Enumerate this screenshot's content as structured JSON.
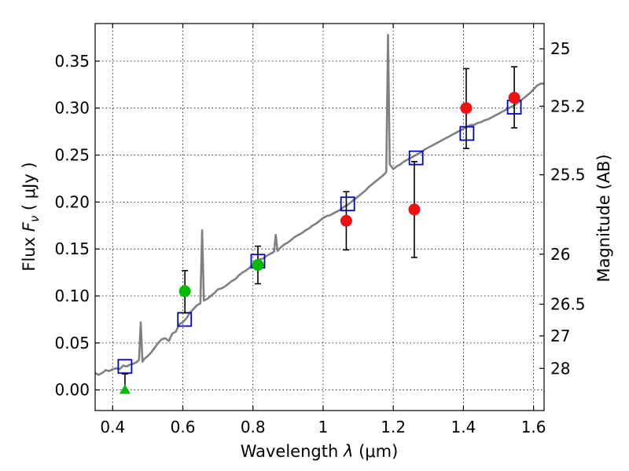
{
  "chart_data": {
    "type": "scatter",
    "xlabel": "Wavelength",
    "xlabel_symbol": "λ",
    "xlabel_unit": "(μm)",
    "ylabel": "Flux",
    "ylabel_symbol": "F",
    "ylabel_subscript": "ν",
    "ylabel_unit": "( μJy )",
    "y2label": "Magnitude (AB)",
    "xlim": [
      0.35,
      1.63
    ],
    "ylim": [
      -0.022,
      0.39
    ],
    "xticks": [
      {
        "value": 0.4,
        "label": "0.4"
      },
      {
        "value": 0.6,
        "label": "0.6"
      },
      {
        "value": 0.8,
        "label": "0.8"
      },
      {
        "value": 1.0,
        "label": "1"
      },
      {
        "value": 1.2,
        "label": "1.2"
      },
      {
        "value": 1.4,
        "label": "1.4"
      },
      {
        "value": 1.6,
        "label": "1.6"
      }
    ],
    "yticks": [
      {
        "value": 0.0,
        "label": "0.00"
      },
      {
        "value": 0.05,
        "label": "0.05"
      },
      {
        "value": 0.1,
        "label": "0.10"
      },
      {
        "value": 0.15,
        "label": "0.15"
      },
      {
        "value": 0.2,
        "label": "0.20"
      },
      {
        "value": 0.25,
        "label": "0.25"
      },
      {
        "value": 0.3,
        "label": "0.30"
      },
      {
        "value": 0.35,
        "label": "0.35"
      }
    ],
    "magnitude_ticks": [
      {
        "flux": 0.0229,
        "label": "28"
      },
      {
        "flux": 0.0575,
        "label": "27"
      },
      {
        "flux": 0.0912,
        "label": "26.5"
      },
      {
        "flux": 0.1445,
        "label": "26"
      },
      {
        "flux": 0.229,
        "label": "25.5"
      },
      {
        "flux": 0.302,
        "label": "25.2"
      },
      {
        "flux": 0.3631,
        "label": "25"
      }
    ],
    "grid": true,
    "series": [
      {
        "name": "model spectrum",
        "kind": "line",
        "color": "#808080",
        "points": [
          [
            0.35,
            0.018
          ],
          [
            0.36,
            0.016
          ],
          [
            0.37,
            0.018
          ],
          [
            0.38,
            0.021
          ],
          [
            0.39,
            0.02
          ],
          [
            0.4,
            0.022
          ],
          [
            0.41,
            0.023
          ],
          [
            0.42,
            0.022
          ],
          [
            0.43,
            0.026
          ],
          [
            0.44,
            0.025
          ],
          [
            0.45,
            0.027
          ],
          [
            0.46,
            0.028
          ],
          [
            0.47,
            0.03
          ],
          [
            0.475,
            0.032
          ],
          [
            0.48,
            0.072
          ],
          [
            0.485,
            0.03
          ],
          [
            0.49,
            0.033
          ],
          [
            0.5,
            0.036
          ],
          [
            0.51,
            0.04
          ],
          [
            0.52,
            0.045
          ],
          [
            0.53,
            0.05
          ],
          [
            0.54,
            0.054
          ],
          [
            0.55,
            0.055
          ],
          [
            0.56,
            0.052
          ],
          [
            0.57,
            0.06
          ],
          [
            0.58,
            0.062
          ],
          [
            0.59,
            0.07
          ],
          [
            0.6,
            0.072
          ],
          [
            0.61,
            0.076
          ],
          [
            0.62,
            0.082
          ],
          [
            0.63,
            0.086
          ],
          [
            0.64,
            0.09
          ],
          [
            0.65,
            0.092
          ],
          [
            0.655,
            0.17
          ],
          [
            0.66,
            0.095
          ],
          [
            0.67,
            0.097
          ],
          [
            0.68,
            0.1
          ],
          [
            0.69,
            0.103
          ],
          [
            0.7,
            0.107
          ],
          [
            0.71,
            0.108
          ],
          [
            0.72,
            0.11
          ],
          [
            0.73,
            0.113
          ],
          [
            0.74,
            0.116
          ],
          [
            0.75,
            0.118
          ],
          [
            0.76,
            0.122
          ],
          [
            0.77,
            0.125
          ],
          [
            0.78,
            0.127
          ],
          [
            0.79,
            0.13
          ],
          [
            0.8,
            0.133
          ],
          [
            0.81,
            0.136
          ],
          [
            0.82,
            0.139
          ],
          [
            0.83,
            0.14
          ],
          [
            0.84,
            0.143
          ],
          [
            0.85,
            0.145
          ],
          [
            0.86,
            0.147
          ],
          [
            0.865,
            0.165
          ],
          [
            0.87,
            0.148
          ],
          [
            0.88,
            0.152
          ],
          [
            0.89,
            0.155
          ],
          [
            0.9,
            0.157
          ],
          [
            0.91,
            0.16
          ],
          [
            0.92,
            0.163
          ],
          [
            0.93,
            0.165
          ],
          [
            0.94,
            0.167
          ],
          [
            0.95,
            0.17
          ],
          [
            0.96,
            0.172
          ],
          [
            0.97,
            0.175
          ],
          [
            0.98,
            0.177
          ],
          [
            0.99,
            0.18
          ],
          [
            1.0,
            0.183
          ],
          [
            1.01,
            0.185
          ],
          [
            1.02,
            0.186
          ],
          [
            1.03,
            0.188
          ],
          [
            1.04,
            0.19
          ],
          [
            1.05,
            0.192
          ],
          [
            1.06,
            0.195
          ],
          [
            1.07,
            0.197
          ],
          [
            1.08,
            0.2
          ],
          [
            1.09,
            0.203
          ],
          [
            1.1,
            0.206
          ],
          [
            1.11,
            0.209
          ],
          [
            1.12,
            0.212
          ],
          [
            1.13,
            0.216
          ],
          [
            1.14,
            0.219
          ],
          [
            1.15,
            0.222
          ],
          [
            1.16,
            0.225
          ],
          [
            1.17,
            0.228
          ],
          [
            1.18,
            0.232
          ],
          [
            1.185,
            0.378
          ],
          [
            1.19,
            0.24
          ],
          [
            1.2,
            0.235
          ],
          [
            1.21,
            0.238
          ],
          [
            1.22,
            0.24
          ],
          [
            1.23,
            0.243
          ],
          [
            1.24,
            0.245
          ],
          [
            1.25,
            0.247
          ],
          [
            1.26,
            0.249
          ],
          [
            1.27,
            0.251
          ],
          [
            1.28,
            0.253
          ],
          [
            1.29,
            0.256
          ],
          [
            1.3,
            0.258
          ],
          [
            1.31,
            0.26
          ],
          [
            1.32,
            0.262
          ],
          [
            1.33,
            0.264
          ],
          [
            1.34,
            0.266
          ],
          [
            1.35,
            0.268
          ],
          [
            1.36,
            0.27
          ],
          [
            1.37,
            0.272
          ],
          [
            1.38,
            0.274
          ],
          [
            1.39,
            0.276
          ],
          [
            1.4,
            0.278
          ],
          [
            1.41,
            0.28
          ],
          [
            1.42,
            0.282
          ],
          [
            1.43,
            0.282
          ],
          [
            1.44,
            0.284
          ],
          [
            1.45,
            0.285
          ],
          [
            1.46,
            0.287
          ],
          [
            1.47,
            0.288
          ],
          [
            1.48,
            0.29
          ],
          [
            1.49,
            0.292
          ],
          [
            1.5,
            0.294
          ],
          [
            1.51,
            0.296
          ],
          [
            1.52,
            0.298
          ],
          [
            1.53,
            0.3
          ],
          [
            1.54,
            0.302
          ],
          [
            1.55,
            0.304
          ],
          [
            1.56,
            0.307
          ],
          [
            1.57,
            0.31
          ],
          [
            1.58,
            0.313
          ],
          [
            1.59,
            0.316
          ],
          [
            1.6,
            0.32
          ],
          [
            1.61,
            0.324
          ],
          [
            1.62,
            0.326
          ],
          [
            1.63,
            0.326
          ]
        ]
      },
      {
        "name": "model photometry",
        "kind": "open-square",
        "color": "#0000cc",
        "points": [
          [
            0.435,
            0.025
          ],
          [
            0.605,
            0.075
          ],
          [
            0.814,
            0.137
          ],
          [
            1.07,
            0.198
          ],
          [
            1.265,
            0.247
          ],
          [
            1.41,
            0.273
          ],
          [
            1.545,
            0.301
          ]
        ]
      },
      {
        "name": "detections (green)",
        "kind": "filled-circle",
        "color": "#00bb00",
        "points": [
          {
            "x": 0.606,
            "y": 0.105,
            "err_low": 0.082,
            "err_high": 0.127
          },
          {
            "x": 0.814,
            "y": 0.133,
            "err_low": 0.113,
            "err_high": 0.153
          }
        ]
      },
      {
        "name": "upper limit (green)",
        "kind": "triangle",
        "color": "#00bb00",
        "points": [
          {
            "x": 0.435,
            "y": 0.0,
            "err_low": 0.0,
            "err_high": 0.017
          }
        ]
      },
      {
        "name": "detections (red)",
        "kind": "filled-circle",
        "color": "#ee1111",
        "points": [
          {
            "x": 1.066,
            "y": 0.18,
            "err_low": 0.149,
            "err_high": 0.211
          },
          {
            "x": 1.26,
            "y": 0.192,
            "err_low": 0.141,
            "err_high": 0.243
          },
          {
            "x": 1.408,
            "y": 0.3,
            "err_low": 0.257,
            "err_high": 0.342
          },
          {
            "x": 1.545,
            "y": 0.311,
            "err_low": 0.279,
            "err_high": 0.344
          }
        ]
      }
    ]
  }
}
